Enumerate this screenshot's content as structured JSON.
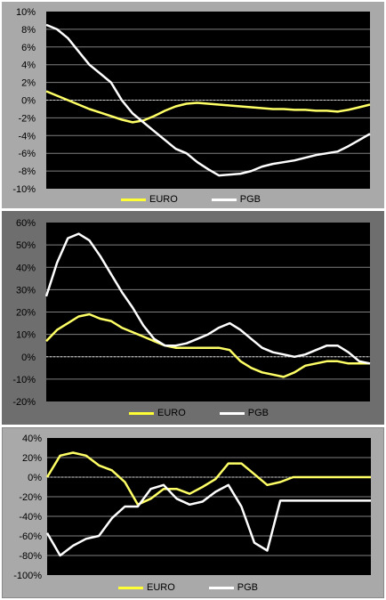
{
  "chart_data": [
    {
      "type": "line",
      "x": [
        0,
        1,
        2,
        3,
        4,
        5,
        6,
        7,
        8,
        9,
        10,
        11,
        12,
        13,
        14,
        15,
        16,
        17,
        18,
        19,
        20,
        21,
        22,
        23,
        24,
        25,
        26,
        27,
        28,
        29,
        30
      ],
      "ylim": [
        -10,
        10
      ],
      "yticks": [
        -10,
        -8,
        -6,
        -4,
        -2,
        0,
        2,
        4,
        6,
        8,
        10
      ],
      "ytick_labels": [
        "-10%",
        "-8%",
        "-6%",
        "-4%",
        "-2%",
        "0%",
        "2%",
        "4%",
        "6%",
        "8%",
        "10%"
      ],
      "grid": true,
      "legend": "bottom",
      "series": [
        {
          "name": "EURO",
          "color": "#f0e68c",
          "values": [
            1.0,
            0.5,
            0.0,
            -0.5,
            -1.0,
            -1.4,
            -1.8,
            -2.2,
            -2.5,
            -2.3,
            -1.8,
            -1.2,
            -0.7,
            -0.4,
            -0.3,
            -0.4,
            -0.5,
            -0.6,
            -0.7,
            -0.8,
            -0.9,
            -1.0,
            -1.0,
            -1.1,
            -1.1,
            -1.2,
            -1.2,
            -1.3,
            -1.1,
            -0.8,
            -0.5
          ]
        },
        {
          "name": "PGB",
          "color": "#ffffff",
          "values": [
            8.5,
            8.0,
            7.0,
            5.5,
            4.0,
            3.0,
            2.0,
            0.0,
            -1.5,
            -2.5,
            -3.5,
            -4.5,
            -5.5,
            -6.0,
            -7.0,
            -7.8,
            -8.5,
            -8.4,
            -8.3,
            -8.0,
            -7.5,
            -7.2,
            -7.0,
            -6.8,
            -6.5,
            -6.2,
            -6.0,
            -5.8,
            -5.2,
            -4.5,
            -3.8
          ]
        }
      ]
    },
    {
      "type": "line",
      "x": [
        0,
        1,
        2,
        3,
        4,
        5,
        6,
        7,
        8,
        9,
        10,
        11,
        12,
        13,
        14,
        15,
        16,
        17,
        18,
        19,
        20,
        21,
        22,
        23,
        24,
        25,
        26,
        27,
        28,
        29,
        30
      ],
      "ylim": [
        -20,
        60
      ],
      "yticks": [
        -20,
        -10,
        0,
        10,
        20,
        30,
        40,
        50,
        60
      ],
      "ytick_labels": [
        "-20%",
        "-10%",
        "0%",
        "10%",
        "20%",
        "30%",
        "40%",
        "50%",
        "60%"
      ],
      "grid": true,
      "legend": "bottom",
      "series": [
        {
          "name": "EURO",
          "color": "#f0e68c",
          "values": [
            7,
            12,
            15,
            18,
            19,
            17,
            16,
            13,
            11,
            9,
            7,
            5,
            4,
            4,
            4,
            4,
            4,
            3,
            -2,
            -5,
            -7,
            -8,
            -9,
            -7,
            -4,
            -3,
            -2,
            -2,
            -3,
            -3,
            -3
          ]
        },
        {
          "name": "PGB",
          "color": "#ffffff",
          "values": [
            27,
            42,
            53,
            55,
            52,
            45,
            37,
            29,
            22,
            14,
            8,
            5,
            5,
            6,
            8,
            10,
            13,
            15,
            12,
            8,
            4,
            2,
            1,
            0,
            1,
            3,
            5,
            5,
            2,
            -2,
            -3
          ]
        }
      ]
    },
    {
      "type": "line",
      "x": [
        0,
        1,
        2,
        3,
        4,
        5,
        6,
        7,
        8,
        9,
        10,
        11,
        12,
        13,
        14,
        15,
        16,
        17,
        18,
        19,
        20,
        21,
        22,
        23,
        24,
        25
      ],
      "ylim": [
        -100,
        40
      ],
      "yticks": [
        -100,
        -80,
        -60,
        -40,
        -20,
        0,
        20,
        40
      ],
      "ytick_labels": [
        "-100%",
        "-80%",
        "-60%",
        "-40%",
        "-20%",
        "0%",
        "20%",
        "40%"
      ],
      "grid": true,
      "legend": "bottom",
      "series": [
        {
          "name": "EURO",
          "color": "#f0e68c",
          "values": [
            0,
            22,
            25,
            22,
            12,
            7,
            -5,
            -28,
            -22,
            -12,
            -12,
            -17,
            -10,
            -2,
            14,
            14,
            3,
            -8,
            -5,
            0,
            0,
            0,
            0,
            0,
            0,
            0
          ]
        },
        {
          "name": "PGB",
          "color": "#ffffff",
          "values": [
            -57,
            -80,
            -70,
            -63,
            -60,
            -42,
            -30,
            -30,
            -12,
            -8,
            -22,
            -28,
            -25,
            -15,
            -8,
            -30,
            -67,
            -75,
            -24,
            -24,
            -24,
            -24,
            -24,
            -24,
            -24,
            -24
          ]
        }
      ]
    }
  ]
}
